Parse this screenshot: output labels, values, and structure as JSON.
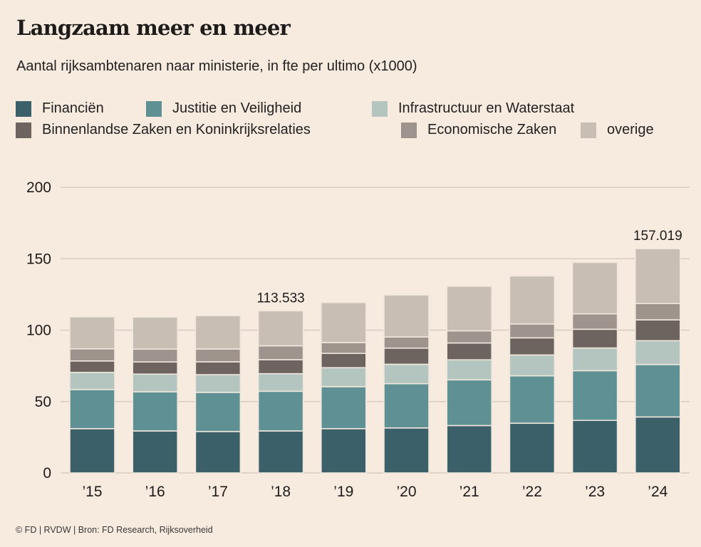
{
  "header": {
    "title": "Langzaam meer en meer",
    "subtitle": "Aantal rijksambtenaren naar ministerie, in fte per ultimo (x1000)"
  },
  "footer": {
    "credit": "© FD | RVDW | Bron: FD Research, Rijksoverheid"
  },
  "chart_data": {
    "type": "bar",
    "stacked": true,
    "title": "Langzaam meer en meer",
    "subtitle": "Aantal rijksambtenaren naar ministerie, in fte per ultimo (x1000)",
    "xlabel": "",
    "ylabel": "",
    "ylim": [
      0,
      200
    ],
    "yticks": [
      0,
      50,
      100,
      150,
      200
    ],
    "grid": true,
    "legend_position": "top",
    "categories": [
      "’15",
      "’16",
      "’17",
      "’18",
      "’19",
      "’20",
      "’21",
      "’22",
      "’23",
      "’24"
    ],
    "series": [
      {
        "name": "Financiën",
        "color": "#3b6069",
        "values": [
          31.0,
          29.4,
          29.0,
          29.4,
          31.0,
          31.5,
          33.2,
          34.8,
          36.8,
          39.2
        ]
      },
      {
        "name": "Justitie en Veiligheid",
        "color": "#5f9194",
        "values": [
          27.4,
          27.4,
          27.4,
          27.8,
          29.4,
          31.0,
          32.0,
          33.2,
          34.8,
          36.7
        ]
      },
      {
        "name": "Infrastructuur en Waterstaat",
        "color": "#b4c4bf",
        "values": [
          12.0,
          12.4,
          12.4,
          12.3,
          13.3,
          13.6,
          14.0,
          14.6,
          15.9,
          16.7
        ]
      },
      {
        "name": "Binnenlandse Zaken en Koninkrijksrelaties",
        "color": "#6e645f",
        "values": [
          8.0,
          8.5,
          9.0,
          9.8,
          10.0,
          11.3,
          11.8,
          12.0,
          13.1,
          14.6
        ]
      },
      {
        "name": "Economische Zaken",
        "color": "#9e948d",
        "values": [
          8.5,
          9.0,
          9.0,
          9.7,
          7.6,
          7.8,
          8.5,
          9.7,
          10.8,
          11.4
        ]
      },
      {
        "name": "overige",
        "color": "#c8beb4",
        "values": [
          22.4,
          22.4,
          23.3,
          24.5,
          28.0,
          29.4,
          31.2,
          33.6,
          36.0,
          38.4
        ]
      }
    ],
    "annotations": [
      {
        "category": "’18",
        "text": "113.533"
      },
      {
        "category": "’24",
        "text": "157.019"
      }
    ]
  }
}
